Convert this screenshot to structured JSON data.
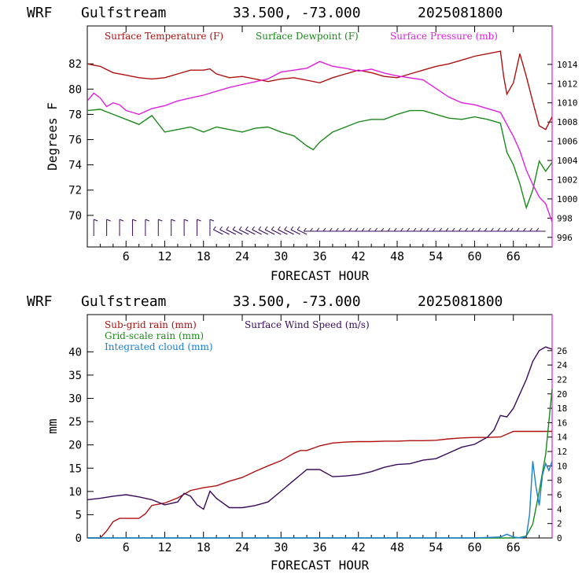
{
  "chart_data": [
    {
      "type": "line",
      "header": {
        "model": "WRF",
        "location": "Gulfstream",
        "coords": "33.500, -73.000",
        "init_time": "2025081800"
      },
      "xlabel": "FORECAST HOUR",
      "ylabel": "Degrees F",
      "xlim": [
        0,
        72
      ],
      "ylim": [
        67.5,
        85
      ],
      "y2lim": [
        995,
        1018
      ],
      "x_ticks": [
        "6",
        "12",
        "18",
        "24",
        "30",
        "36",
        "42",
        "48",
        "54",
        "60",
        "66"
      ],
      "y_ticks": [
        "70",
        "72",
        "74",
        "76",
        "78",
        "80",
        "82"
      ],
      "y2_ticks": [
        "996",
        "998",
        "1000",
        "1002",
        "1004",
        "1006",
        "1008",
        "1010",
        "1012",
        "1014"
      ],
      "series": [
        {
          "name": "Surface Temperature (F)",
          "color": "#b01010",
          "axis": "left",
          "x": [
            0,
            2,
            4,
            6,
            8,
            10,
            12,
            14,
            16,
            18,
            19,
            20,
            22,
            24,
            26,
            28,
            30,
            32,
            34,
            36,
            38,
            40,
            42,
            44,
            46,
            48,
            50,
            52,
            54,
            56,
            58,
            60,
            62,
            64,
            64.5,
            65,
            66,
            67,
            68,
            69,
            70,
            71,
            72
          ],
          "values": [
            82.0,
            81.8,
            81.3,
            81.1,
            80.9,
            80.8,
            80.9,
            81.2,
            81.5,
            81.5,
            81.6,
            81.2,
            80.9,
            81.0,
            80.8,
            80.6,
            80.8,
            80.9,
            80.7,
            80.5,
            80.9,
            81.2,
            81.5,
            81.3,
            81.0,
            80.9,
            81.2,
            81.5,
            81.8,
            82.0,
            82.3,
            82.6,
            82.8,
            83.0,
            81.0,
            79.6,
            80.5,
            82.8,
            81.0,
            79.0,
            77.1,
            76.8,
            77.8
          ]
        },
        {
          "name": "Surface Dewpoint (F)",
          "color": "#1a8a1a",
          "axis": "left",
          "x": [
            0,
            2,
            4,
            6,
            8,
            10,
            12,
            14,
            16,
            18,
            20,
            22,
            24,
            26,
            28,
            30,
            32,
            34,
            35,
            36,
            38,
            40,
            42,
            44,
            46,
            48,
            50,
            52,
            54,
            56,
            58,
            60,
            62,
            64,
            65,
            66,
            67,
            68,
            69,
            70,
            71,
            72
          ],
          "values": [
            78.3,
            78.4,
            78.0,
            77.6,
            77.2,
            77.9,
            76.6,
            76.8,
            77.0,
            76.6,
            77.0,
            76.8,
            76.6,
            76.9,
            77.0,
            76.6,
            76.3,
            75.5,
            75.2,
            75.8,
            76.6,
            77.0,
            77.4,
            77.6,
            77.6,
            78.0,
            78.3,
            78.3,
            78.0,
            77.7,
            77.6,
            77.8,
            77.6,
            77.3,
            75.0,
            74.0,
            72.5,
            70.6,
            72.0,
            74.3,
            73.5,
            74.2
          ]
        },
        {
          "name": "Surface Pressure (mb)",
          "color": "#e020e0",
          "axis": "right",
          "x": [
            0,
            1,
            2,
            3,
            4,
            5,
            6,
            8,
            10,
            12,
            14,
            16,
            18,
            20,
            22,
            24,
            26,
            28,
            30,
            32,
            34,
            36,
            38,
            40,
            42,
            44,
            46,
            48,
            50,
            52,
            54,
            56,
            58,
            60,
            62,
            64,
            66,
            67,
            68,
            69,
            70,
            71,
            72
          ],
          "values": [
            1010.2,
            1011.0,
            1010.5,
            1009.6,
            1010.0,
            1009.8,
            1009.2,
            1008.8,
            1009.4,
            1009.7,
            1010.2,
            1010.5,
            1010.8,
            1011.2,
            1011.6,
            1011.9,
            1012.2,
            1012.5,
            1013.2,
            1013.4,
            1013.6,
            1014.3,
            1013.8,
            1013.6,
            1013.3,
            1013.5,
            1013.1,
            1012.8,
            1012.6,
            1012.4,
            1011.5,
            1010.6,
            1010.0,
            1009.8,
            1009.4,
            1009.0,
            1006.5,
            1005.0,
            1003.0,
            1001.5,
            1000.2,
            999.5,
            997.6
          ]
        }
      ],
      "wind_barbs_note": "Wind barbs plotted along bottom of panel"
    },
    {
      "type": "line",
      "header": {
        "model": "WRF",
        "location": "Gulfstream",
        "coords": "33.500, -73.000",
        "init_time": "2025081800"
      },
      "xlabel": "FORECAST HOUR",
      "ylabel": "mm",
      "xlim": [
        0,
        72
      ],
      "ylim": [
        0,
        48
      ],
      "y2lim": [
        0,
        31
      ],
      "x_ticks": [
        "6",
        "12",
        "18",
        "24",
        "30",
        "36",
        "42",
        "48",
        "54",
        "60",
        "66"
      ],
      "y_ticks": [
        "0",
        "5",
        "10",
        "15",
        "20",
        "25",
        "30",
        "35",
        "40"
      ],
      "y2_ticks": [
        "0",
        "2",
        "4",
        "6",
        "8",
        "10",
        "12",
        "14",
        "16",
        "18",
        "20",
        "22",
        "24",
        "26"
      ],
      "series": [
        {
          "name": "Sub-grid rain (mm)",
          "color": "#b01010",
          "axis": "left",
          "x": [
            0,
            2,
            3,
            4,
            5,
            6,
            8,
            9,
            10,
            12,
            14,
            16,
            18,
            20,
            22,
            24,
            26,
            28,
            30,
            32,
            33,
            34,
            36,
            38,
            40,
            42,
            44,
            46,
            48,
            50,
            52,
            54,
            56,
            58,
            60,
            62,
            64,
            66,
            68,
            70,
            72
          ],
          "values": [
            0,
            0,
            1.5,
            3.5,
            4.2,
            4.2,
            4.2,
            5.2,
            7.0,
            7.5,
            8.6,
            10.2,
            10.8,
            11.2,
            12.2,
            13.0,
            14.3,
            15.5,
            16.6,
            18.2,
            18.8,
            18.8,
            19.8,
            20.4,
            20.6,
            20.7,
            20.7,
            20.8,
            20.8,
            20.9,
            20.9,
            21.0,
            21.3,
            21.5,
            21.6,
            21.6,
            21.7,
            22.9,
            22.9,
            22.9,
            22.9
          ]
        },
        {
          "name": "Grid-scale rain (mm)",
          "color": "#1a8a1a",
          "axis": "left",
          "x": [
            0,
            10,
            20,
            30,
            40,
            50,
            60,
            66,
            67,
            68,
            69,
            70,
            71,
            72
          ],
          "values": [
            0,
            0,
            0,
            0,
            0,
            0,
            0,
            0,
            0.1,
            0.4,
            3.0,
            10.0,
            18.0,
            32.0
          ]
        },
        {
          "name": "Integrated cloud (mm)",
          "color": "#1a7fd0",
          "axis": "left",
          "x": [
            0,
            20,
            40,
            60,
            64,
            65,
            66,
            67,
            68,
            68.5,
            69,
            69.5,
            70,
            70.5,
            71,
            71.5,
            72
          ],
          "values": [
            0,
            0,
            0,
            0,
            0.2,
            0.8,
            0.2,
            0,
            0.3,
            5.0,
            16.5,
            11.0,
            7.0,
            13.5,
            16.0,
            14.5,
            16.5
          ]
        },
        {
          "name": "Surface Wind Speed (m/s)",
          "color": "#3a0a5a",
          "axis": "right",
          "x": [
            0,
            2,
            4,
            6,
            8,
            10,
            12,
            14,
            15,
            16,
            17,
            18,
            19,
            20,
            22,
            24,
            26,
            28,
            30,
            32,
            34,
            36,
            38,
            40,
            42,
            44,
            46,
            48,
            50,
            52,
            54,
            56,
            58,
            60,
            62,
            63,
            64,
            65,
            66,
            67,
            68,
            69,
            70,
            71,
            72
          ],
          "values": [
            5.3,
            5.5,
            5.8,
            6.0,
            5.7,
            5.3,
            4.6,
            5.0,
            6.2,
            5.8,
            4.6,
            4.0,
            6.5,
            5.5,
            4.2,
            4.2,
            4.5,
            5.0,
            6.5,
            8.0,
            9.5,
            9.5,
            8.5,
            8.6,
            8.8,
            9.2,
            9.8,
            10.2,
            10.3,
            10.8,
            11.0,
            11.8,
            12.6,
            13.0,
            14.0,
            15.0,
            17.0,
            16.8,
            18.0,
            20.0,
            22.0,
            24.5,
            26.0,
            26.5,
            26.2
          ]
        }
      ]
    }
  ]
}
